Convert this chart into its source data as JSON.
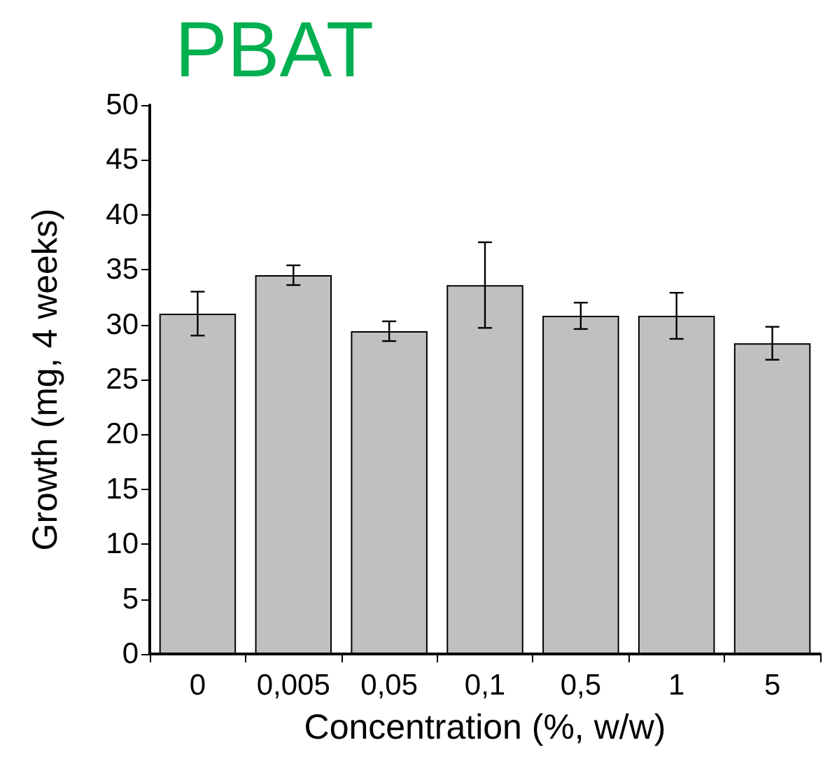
{
  "chart_data": {
    "type": "bar",
    "title": "PBAT",
    "xlabel": "Concentration (%, w/w)",
    "ylabel": "Growth (mg, 4 weeks)",
    "categories": [
      "0",
      "0,005",
      "0,05",
      "0,1",
      "0,5",
      "1",
      "5"
    ],
    "values": [
      31.0,
      34.5,
      29.4,
      33.6,
      30.8,
      30.8,
      28.3
    ],
    "errors": [
      2.0,
      0.9,
      0.9,
      3.9,
      1.2,
      2.1,
      1.5
    ],
    "color": "#c0c0c0",
    "ylim": [
      0,
      50
    ],
    "yticks": [
      0,
      5,
      10,
      15,
      20,
      25,
      30,
      35,
      40,
      45,
      50
    ],
    "grid": false
  }
}
